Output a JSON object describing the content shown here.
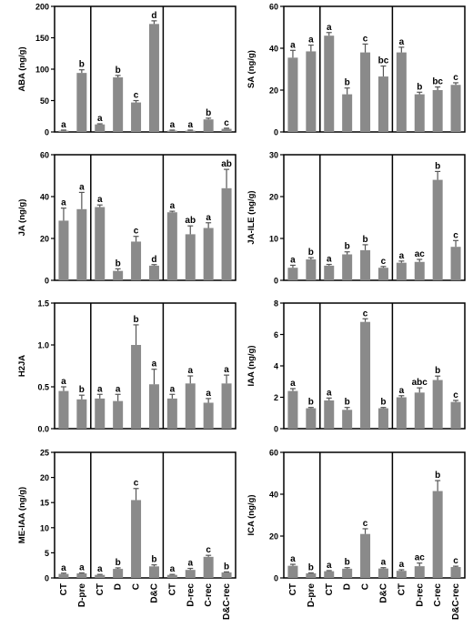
{
  "categories": [
    "CT",
    "D-pre",
    "CT",
    "D",
    "C",
    "D&C",
    "CT",
    "D-rec",
    "C-rec",
    "D&C-rec"
  ],
  "colors": {
    "bar": "#8a8a8a",
    "axis": "#000000"
  },
  "chart_data": [
    {
      "type": "bar",
      "ylabel": "ABA (ng/g)",
      "ylim": [
        0,
        200
      ],
      "yticks": [
        0,
        50,
        100,
        150,
        200
      ],
      "values": [
        2,
        94,
        12,
        87,
        47,
        172,
        2,
        2,
        20,
        5
      ],
      "errors": [
        1,
        5,
        1,
        3,
        3,
        5,
        1,
        1,
        2,
        1
      ],
      "letters": [
        "a",
        "b",
        "a",
        "b",
        "c",
        "d",
        "a",
        "a",
        "b",
        "c"
      ]
    },
    {
      "type": "bar",
      "ylabel": "SA (ng/g)",
      "ylim": [
        0,
        60
      ],
      "yticks": [
        0,
        20,
        40,
        60
      ],
      "values": [
        35.5,
        38.5,
        46,
        18,
        38,
        26.5,
        38,
        18,
        20,
        22.5
      ],
      "errors": [
        3.5,
        3,
        1.5,
        3,
        4,
        5,
        2.5,
        1,
        1.5,
        1
      ],
      "letters": [
        "a",
        "a",
        "a",
        "b",
        "c",
        "bc",
        "a",
        "b",
        "bc",
        "c"
      ]
    },
    {
      "type": "bar",
      "ylabel": "JA (ng/g)",
      "ylim": [
        0,
        60
      ],
      "yticks": [
        0,
        20,
        40,
        60
      ],
      "values": [
        28.5,
        34,
        35,
        4.5,
        18.5,
        7,
        32.5,
        22,
        25,
        44
      ],
      "errors": [
        6,
        8,
        1,
        1,
        2.5,
        0.5,
        0.5,
        4,
        2.5,
        9
      ],
      "letters": [
        "a",
        "a",
        "a",
        "b",
        "c",
        "d",
        "a",
        "ab",
        "a",
        "ab"
      ]
    },
    {
      "type": "bar",
      "ylabel": "JA-ILE (ng/g)",
      "ylim": [
        0,
        30
      ],
      "yticks": [
        0,
        10,
        20,
        30
      ],
      "values": [
        3,
        5,
        3.5,
        6.2,
        7.2,
        3,
        4.2,
        4.4,
        24,
        8
      ],
      "errors": [
        0.6,
        0.4,
        0.3,
        0.6,
        1.3,
        0.3,
        0.4,
        0.6,
        2,
        1.5
      ],
      "letters": [
        "a",
        "b",
        "a",
        "b",
        "b",
        "c",
        "a",
        "ac",
        "b",
        "c"
      ]
    },
    {
      "type": "bar",
      "ylabel": "H2JA",
      "ylim": [
        0,
        1.5
      ],
      "yticks": [
        0,
        0.5,
        1.0,
        1.5
      ],
      "ytick_labels": [
        "0.0",
        "0.5",
        "1.0",
        "1.5"
      ],
      "values": [
        0.45,
        0.35,
        0.36,
        0.33,
        1.0,
        0.53,
        0.36,
        0.54,
        0.31,
        0.54
      ],
      "errors": [
        0.05,
        0.05,
        0.05,
        0.08,
        0.24,
        0.18,
        0.05,
        0.09,
        0.05,
        0.1
      ],
      "letters": [
        "a",
        "b",
        "a",
        "a",
        "b",
        "a",
        "a",
        "a",
        "a",
        "a"
      ]
    },
    {
      "type": "bar",
      "ylabel": "IAA (ng/g)",
      "ylim": [
        0,
        8
      ],
      "yticks": [
        0,
        2,
        4,
        6,
        8
      ],
      "values": [
        2.4,
        1.3,
        1.8,
        1.2,
        6.8,
        1.3,
        2.0,
        2.3,
        3.1,
        1.7
      ],
      "errors": [
        0.15,
        0.05,
        0.15,
        0.15,
        0.2,
        0.05,
        0.1,
        0.3,
        0.25,
        0.1
      ],
      "letters": [
        "a",
        "b",
        "a",
        "b",
        "c",
        "b",
        "a",
        "abc",
        "b",
        "c"
      ]
    },
    {
      "type": "bar",
      "ylabel": "ME-IAA (ng/g)",
      "ylim": [
        0,
        25
      ],
      "yticks": [
        0,
        5,
        10,
        15,
        20,
        25
      ],
      "values": [
        0.8,
        0.9,
        0.6,
        1.8,
        15.5,
        2.3,
        0.6,
        1.6,
        4.2,
        1.1
      ],
      "errors": [
        0.15,
        0.1,
        0.1,
        0.2,
        2.3,
        0.3,
        0.1,
        0.3,
        0.3,
        0.1
      ],
      "letters": [
        "a",
        "a",
        "a",
        "b",
        "c",
        "b",
        "a",
        "a",
        "c",
        "b"
      ]
    },
    {
      "type": "bar",
      "ylabel": "ICA (ng/g)",
      "ylim": [
        0,
        60
      ],
      "yticks": [
        0,
        20,
        40,
        60
      ],
      "values": [
        5.8,
        2.2,
        3.2,
        4.4,
        21,
        4.5,
        3.4,
        5.6,
        41.5,
        5.2
      ],
      "errors": [
        0.7,
        0.2,
        0.3,
        0.5,
        2.5,
        0.4,
        0.5,
        1.5,
        5,
        0.4
      ],
      "letters": [
        "a",
        "b",
        "a",
        "b",
        "c",
        "a",
        "a",
        "ac",
        "b",
        "c"
      ]
    }
  ]
}
